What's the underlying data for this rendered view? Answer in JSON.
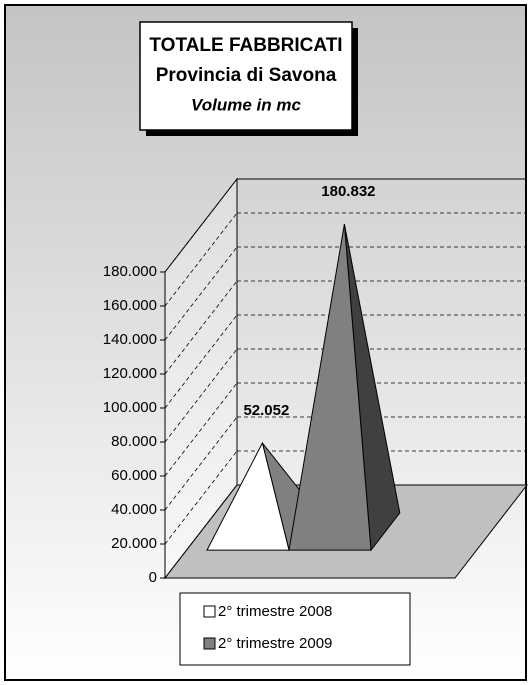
{
  "chart_data": {
    "type": "pyramid3d",
    "title": "TOTALE FABBRICATI",
    "subtitle": "Provincia di Savona",
    "y_label": "Volume in mc",
    "categories": [
      null
    ],
    "series": [
      {
        "name": "2° trimestre 2008",
        "color": "#ffffff",
        "values": [
          52052
        ],
        "value_labels": [
          "52.052"
        ]
      },
      {
        "name": "2° trimestre 2009",
        "color": "#808080",
        "values": [
          180832
        ],
        "value_labels": [
          "180.832"
        ]
      }
    ],
    "ylim": [
      0,
      180000
    ],
    "yticks": [
      0,
      {
        "value": 20000,
        "label": "20.000"
      },
      {
        "value": 40000,
        "label": "40.000"
      },
      {
        "value": 60000,
        "label": "60.000"
      },
      {
        "value": 80000,
        "label": "80.000"
      },
      {
        "value": 100000,
        "label": "100.000"
      },
      {
        "value": 120000,
        "label": "120.000"
      },
      {
        "value": 140000,
        "label": "140.000"
      },
      {
        "value": 160000,
        "label": "160.000"
      },
      {
        "value": 180000,
        "label": "180.000"
      }
    ],
    "grid": true
  }
}
